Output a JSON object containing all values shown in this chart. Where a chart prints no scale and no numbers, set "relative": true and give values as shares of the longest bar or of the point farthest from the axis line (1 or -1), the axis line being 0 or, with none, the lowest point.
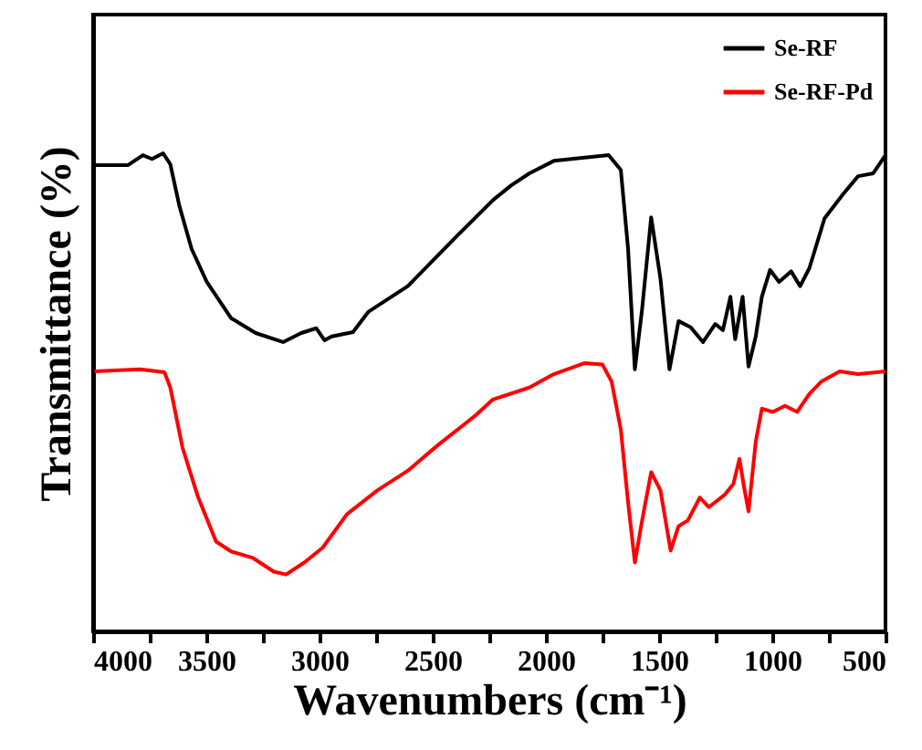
{
  "chart_data": {
    "type": "line",
    "relative": true,
    "xlabel": "Wavenumbers (cm⁻¹)",
    "ylabel": "Transmittance (%)",
    "xlim": [
      4000,
      500
    ],
    "xticks": [
      4000,
      {
        "value": 3750,
        "label": null
      },
      3500,
      {
        "value": 3250,
        "label": null
      },
      3000,
      {
        "value": 2750,
        "label": null
      },
      2500,
      {
        "value": 2250,
        "label": null
      },
      2000,
      {
        "value": 1750,
        "label": null
      },
      1500,
      {
        "value": 1250,
        "label": null
      },
      1000,
      {
        "value": 750,
        "label": null
      },
      500
    ],
    "tick_labels": "x",
    "grid": false,
    "legend": "top right",
    "marker": "none",
    "line_style": "solid",
    "series": [
      {
        "name": "Se-RF",
        "color": "#000000",
        "x": [
          3994,
          3847,
          3780,
          3740,
          3691,
          3659,
          3619,
          3565,
          3498,
          3390,
          3282,
          3161,
          3081,
          3014,
          2978,
          2946,
          2852,
          2785,
          2610,
          2395,
          2234,
          2153,
          2073,
          1965,
          1723,
          1669,
          1637,
          1607,
          1575,
          1535,
          1494,
          1454,
          1414,
          1360,
          1306,
          1252,
          1218,
          1185,
          1164,
          1131,
          1105,
          1073,
          1046,
          1010,
          970,
          917,
          877,
          836,
          769,
          688,
          621,
          554,
          500
        ],
        "values": [
          0.975,
          0.975,
          0.996,
          0.988,
          1.0,
          0.977,
          0.89,
          0.8,
          0.731,
          0.655,
          0.624,
          0.605,
          0.624,
          0.634,
          0.609,
          0.617,
          0.626,
          0.668,
          0.722,
          0.826,
          0.902,
          0.933,
          0.958,
          0.984,
          0.996,
          0.965,
          0.8,
          0.548,
          0.674,
          0.866,
          0.738,
          0.548,
          0.649,
          0.636,
          0.605,
          0.643,
          0.63,
          0.7,
          0.611,
          0.7,
          0.554,
          0.617,
          0.7,
          0.756,
          0.731,
          0.753,
          0.722,
          0.76,
          0.864,
          0.914,
          0.952,
          0.958,
          0.996
        ]
      },
      {
        "name": "Se-RF-Pd",
        "color": "#ff0000",
        "x": [
          3994,
          3793,
          3685,
          3659,
          3605,
          3538,
          3457,
          3390,
          3296,
          3202,
          3148,
          3067,
          2986,
          2879,
          2744,
          2610,
          2476,
          2315,
          2234,
          2073,
          1965,
          1831,
          1750,
          1710,
          1669,
          1637,
          1607,
          1575,
          1535,
          1494,
          1449,
          1414,
          1373,
          1320,
          1280,
          1212,
          1172,
          1145,
          1127,
          1105,
          1073,
          1046,
          998,
          944,
          890,
          836,
          782,
          702,
          621,
          500
        ],
        "values": [
          0.544,
          0.548,
          0.542,
          0.51,
          0.384,
          0.283,
          0.188,
          0.167,
          0.154,
          0.125,
          0.119,
          0.144,
          0.175,
          0.245,
          0.295,
          0.336,
          0.39,
          0.45,
          0.485,
          0.51,
          0.538,
          0.561,
          0.558,
          0.523,
          0.422,
          0.27,
          0.144,
          0.232,
          0.333,
          0.295,
          0.169,
          0.22,
          0.232,
          0.28,
          0.26,
          0.285,
          0.308,
          0.361,
          0.308,
          0.251,
          0.397,
          0.466,
          0.459,
          0.472,
          0.459,
          0.497,
          0.523,
          0.544,
          0.538,
          0.544
        ]
      }
    ]
  }
}
